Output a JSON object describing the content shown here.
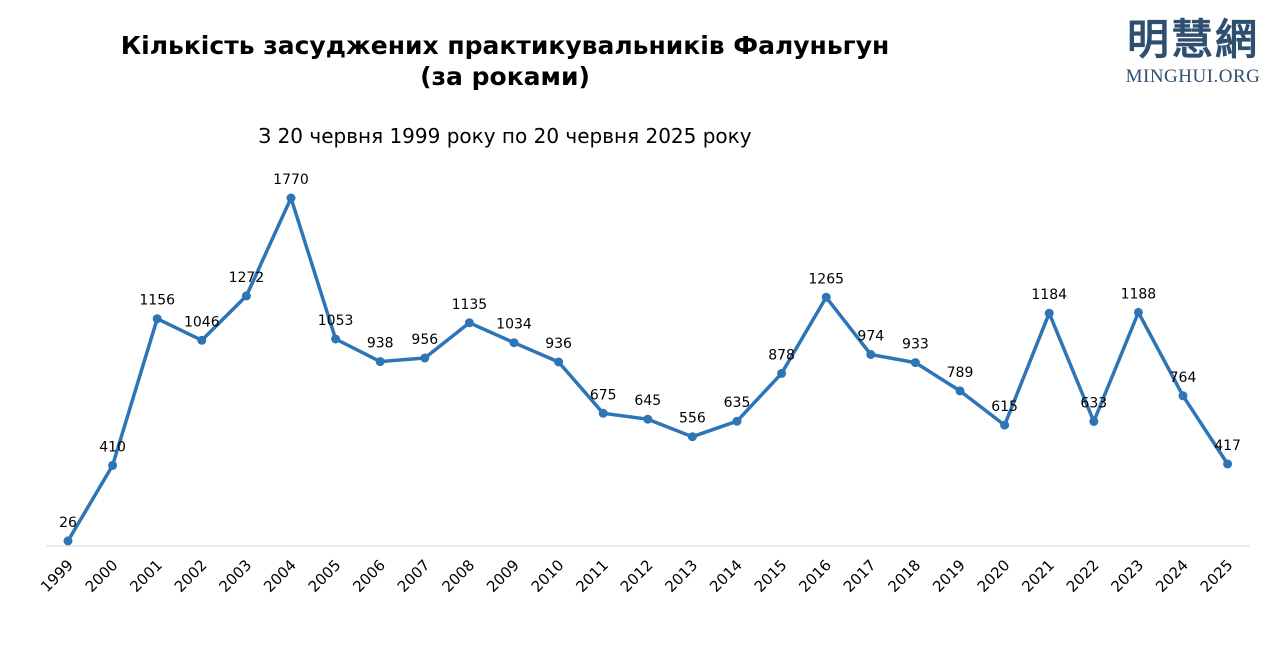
{
  "header": {
    "title_line1": "Кількість засуджених практикувальників Фалуньгун",
    "title_line2": "(за роками)",
    "subtitle": "З 20 червня 1999 року по 20 червня 2025 року"
  },
  "logo": {
    "cjk": "明慧網",
    "latin": "MINGHUI.ORG",
    "color": "#2f4f70"
  },
  "chart_data": {
    "type": "line",
    "title": "Кількість засуджених практикувальників Фалуньгун (за роками)",
    "subtitle": "З 20 червня 1999 року по 20 червня 2025 року",
    "categories": [
      "1999",
      "2000",
      "2001",
      "2002",
      "2003",
      "2004",
      "2005",
      "2006",
      "2007",
      "2008",
      "2009",
      "2010",
      "2011",
      "2012",
      "2013",
      "2014",
      "2015",
      "2016",
      "2017",
      "2018",
      "2019",
      "2020",
      "2021",
      "2022",
      "2023",
      "2024",
      "2025"
    ],
    "series": [
      {
        "values": [
          26,
          410,
          1156,
          1046,
          1272,
          1770,
          1053,
          938,
          956,
          1135,
          1034,
          936,
          675,
          645,
          556,
          635,
          878,
          1265,
          974,
          933,
          789,
          615,
          1184,
          633,
          1188,
          764,
          417
        ],
        "color": "#2e75b6"
      }
    ],
    "ylim": [
      0,
      1800
    ],
    "grid": false,
    "legend": "none",
    "data_labels": true
  }
}
